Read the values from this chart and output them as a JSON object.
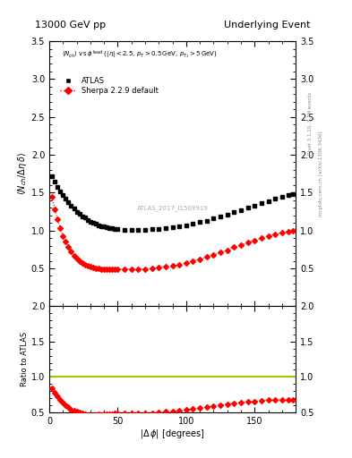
{
  "title_left": "13000 GeV pp",
  "title_right": "Underlying Event",
  "right_label1": "Rivet 3.1.10, 3.7M events",
  "right_label2": "mcplots.cern.ch [arXiv:1306.3436]",
  "watermark": "ATLAS_2017_I1509919",
  "ylabel_main": "⟨N_{ch} / Δη delta⟩",
  "ylabel_ratio": "Ratio to ATLAS",
  "xlabel": "|Δ φ| [degrees]",
  "ylim_main": [
    0.0,
    3.5
  ],
  "ylim_ratio": [
    0.5,
    2.0
  ],
  "yticks_main": [
    0.5,
    1.0,
    1.5,
    2.0,
    2.5,
    3.0,
    3.5
  ],
  "yticks_ratio": [
    0.5,
    1.0,
    1.5,
    2.0
  ],
  "xlim": [
    0,
    180
  ],
  "xticks": [
    0,
    50,
    100,
    150
  ],
  "atlas_x": [
    2,
    4,
    6,
    8,
    10,
    12,
    14,
    16,
    18,
    20,
    22,
    24,
    26,
    28,
    30,
    32,
    34,
    36,
    38,
    40,
    42,
    44,
    46,
    48,
    50,
    55,
    60,
    65,
    70,
    75,
    80,
    85,
    90,
    95,
    100,
    105,
    110,
    115,
    120,
    125,
    130,
    135,
    140,
    145,
    150,
    155,
    160,
    165,
    170,
    175,
    178
  ],
  "atlas_y": [
    1.72,
    1.65,
    1.58,
    1.52,
    1.47,
    1.42,
    1.37,
    1.33,
    1.29,
    1.25,
    1.22,
    1.19,
    1.17,
    1.14,
    1.12,
    1.1,
    1.09,
    1.07,
    1.06,
    1.05,
    1.04,
    1.03,
    1.03,
    1.02,
    1.02,
    1.01,
    1.01,
    1.01,
    1.01,
    1.02,
    1.02,
    1.03,
    1.04,
    1.05,
    1.07,
    1.09,
    1.11,
    1.13,
    1.16,
    1.18,
    1.21,
    1.24,
    1.27,
    1.3,
    1.33,
    1.36,
    1.39,
    1.42,
    1.44,
    1.47,
    1.48
  ],
  "sherpa_x": [
    2,
    4,
    6,
    8,
    10,
    12,
    14,
    16,
    18,
    20,
    22,
    24,
    26,
    28,
    30,
    32,
    34,
    36,
    38,
    40,
    42,
    44,
    46,
    48,
    50,
    55,
    60,
    65,
    70,
    75,
    80,
    85,
    90,
    95,
    100,
    105,
    110,
    115,
    120,
    125,
    130,
    135,
    140,
    145,
    150,
    155,
    160,
    165,
    170,
    175,
    178
  ],
  "sherpa_y": [
    1.44,
    1.28,
    1.15,
    1.03,
    0.93,
    0.85,
    0.78,
    0.72,
    0.67,
    0.63,
    0.6,
    0.57,
    0.55,
    0.53,
    0.52,
    0.51,
    0.5,
    0.5,
    0.49,
    0.49,
    0.49,
    0.49,
    0.49,
    0.49,
    0.49,
    0.49,
    0.49,
    0.49,
    0.49,
    0.5,
    0.51,
    0.52,
    0.53,
    0.55,
    0.57,
    0.6,
    0.62,
    0.65,
    0.68,
    0.71,
    0.74,
    0.78,
    0.81,
    0.84,
    0.87,
    0.9,
    0.93,
    0.95,
    0.97,
    0.99,
    1.0
  ],
  "bg_color": "#ffffff",
  "atlas_color": "#000000",
  "sherpa_color": "#ff0000",
  "ratio_ref_color": "#99cc00"
}
